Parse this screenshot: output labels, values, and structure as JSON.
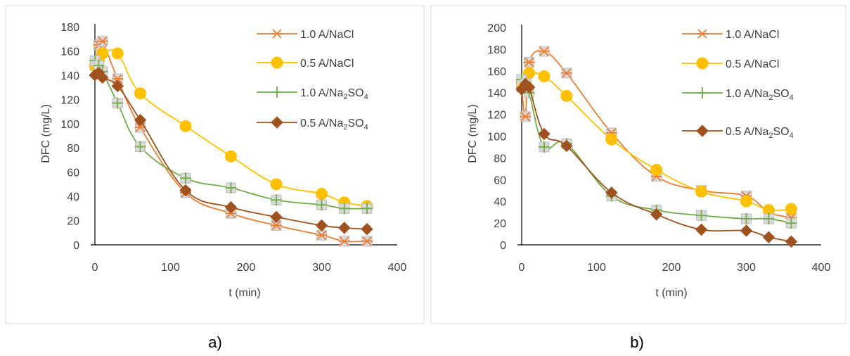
{
  "chart_data": [
    {
      "type": "line",
      "panel_label": "a)",
      "xlabel": "t (min)",
      "ylabel": "DFC (mg/L)",
      "xlim": [
        0,
        400
      ],
      "ylim": [
        0,
        180
      ],
      "xticks": [
        "0",
        "100",
        "200",
        "300",
        "400"
      ],
      "yticks": [
        "0",
        "20",
        "40",
        "60",
        "80",
        "100",
        "120",
        "140",
        "160",
        "180"
      ],
      "legend_position": "right",
      "series": [
        {
          "name_main": "1.0 A/NaCl",
          "name_sub": "",
          "name_tail": "",
          "color": "#ed7d31",
          "marker": "star",
          "x": [
            0,
            5,
            10,
            30,
            60,
            120,
            180,
            240,
            300,
            330,
            360
          ],
          "y": [
            148,
            165,
            168,
            137,
            97,
            43,
            26,
            16,
            8,
            3,
            3
          ]
        },
        {
          "name_main": "0.5 A/NaCl",
          "name_sub": "",
          "name_tail": "",
          "color": "#ffc000",
          "marker": "circle",
          "x": [
            0,
            5,
            10,
            30,
            60,
            120,
            180,
            240,
            300,
            330,
            360
          ],
          "y": [
            148,
            152,
            158,
            158,
            125,
            98,
            73,
            50,
            42,
            35,
            32
          ]
        },
        {
          "name_main": "1.0 A/Na",
          "name_sub": "2",
          "name_tail": "SO4",
          "color": "#70ad47",
          "marker": "plus",
          "x": [
            0,
            5,
            10,
            30,
            60,
            120,
            180,
            240,
            300,
            330,
            360
          ],
          "y": [
            152,
            148,
            143,
            117,
            81,
            55,
            47,
            37,
            33,
            30,
            30
          ]
        },
        {
          "name_main": "0.5 A/Na",
          "name_sub": "2",
          "name_tail": "SO4",
          "color": "#a0521e",
          "marker": "diamond",
          "x": [
            0,
            5,
            10,
            30,
            60,
            120,
            180,
            240,
            300,
            330,
            360
          ],
          "y": [
            140,
            142,
            138,
            131,
            103,
            45,
            31,
            23,
            16,
            14,
            13
          ]
        }
      ]
    },
    {
      "type": "line",
      "panel_label": "b)",
      "xlabel": "t (min)",
      "ylabel": "DFC (mg/L)",
      "xlim": [
        0,
        400
      ],
      "ylim": [
        0,
        200
      ],
      "xticks": [
        "0",
        "100",
        "200",
        "300",
        "400"
      ],
      "yticks": [
        "0",
        "20",
        "40",
        "60",
        "80",
        "100",
        "120",
        "140",
        "160",
        "180",
        "200"
      ],
      "legend_position": "right",
      "series": [
        {
          "name_main": "1.0 A/NaCl",
          "name_sub": "",
          "name_tail": "",
          "color": "#ed7d31",
          "marker": "star",
          "x": [
            0,
            5,
            10,
            30,
            60,
            120,
            180,
            240,
            300,
            330,
            360
          ],
          "y": [
            145,
            118,
            168,
            178,
            158,
            103,
            63,
            50,
            45,
            30,
            25
          ]
        },
        {
          "name_main": "0.5 A/NaCl",
          "name_sub": "",
          "name_tail": "",
          "color": "#ffc000",
          "marker": "circle",
          "x": [
            0,
            5,
            10,
            30,
            60,
            120,
            180,
            240,
            300,
            330,
            360
          ],
          "y": [
            150,
            150,
            158,
            155,
            137,
            97,
            69,
            49,
            40,
            32,
            33
          ]
        },
        {
          "name_main": "1.0 A/Na",
          "name_sub": "2",
          "name_tail": "SO4",
          "color": "#70ad47",
          "marker": "plus",
          "x": [
            0,
            5,
            10,
            30,
            60,
            120,
            180,
            240,
            300,
            330,
            360
          ],
          "y": [
            152,
            148,
            140,
            90,
            93,
            45,
            32,
            27,
            24,
            24,
            20
          ]
        },
        {
          "name_main": "0.5 A/Na",
          "name_sub": "2",
          "name_tail": "SO4",
          "color": "#a0521e",
          "marker": "diamond",
          "x": [
            0,
            5,
            10,
            30,
            60,
            120,
            180,
            240,
            300,
            330,
            360
          ],
          "y": [
            143,
            148,
            145,
            102,
            91,
            48,
            28,
            14,
            13,
            7,
            3
          ]
        }
      ]
    }
  ]
}
